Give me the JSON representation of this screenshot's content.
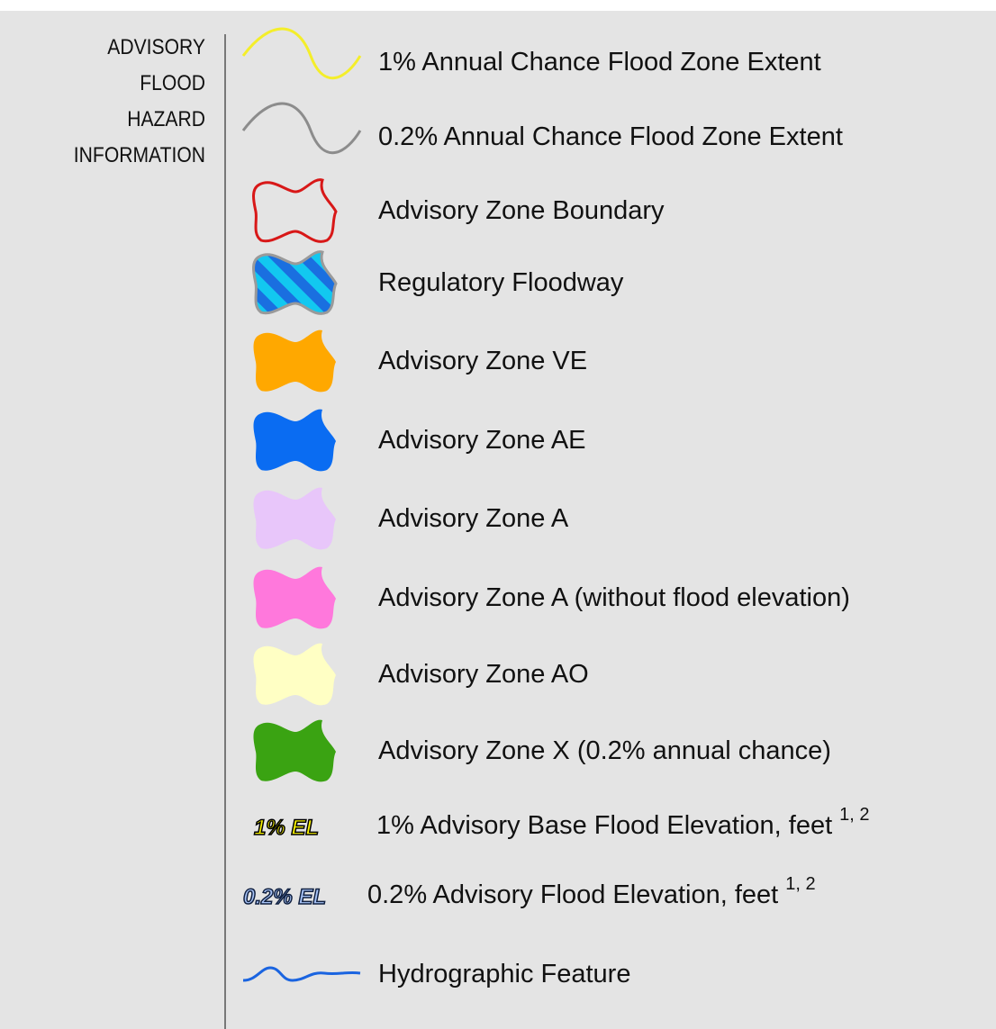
{
  "legend": {
    "title_lines": [
      "ADVISORY",
      "FLOOD",
      "HAZARD",
      "INFORMATION"
    ],
    "items": [
      {
        "label": "1% Annual Chance Flood Zone Extent"
      },
      {
        "label": "0.2% Annual Chance Flood Zone Extent"
      },
      {
        "label": "Advisory Zone Boundary"
      },
      {
        "label": "Regulatory Floodway"
      },
      {
        "label": "Advisory Zone VE"
      },
      {
        "label": "Advisory Zone AE"
      },
      {
        "label": "Advisory Zone A"
      },
      {
        "label": "Advisory Zone A (without flood elevation)"
      },
      {
        "label": "Advisory Zone AO"
      },
      {
        "label": "Advisory Zone X (0.2% annual chance)"
      },
      {
        "symbol_text": "1% EL",
        "label": "1% Advisory Base Flood Elevation, feet",
        "superscript": "1, 2"
      },
      {
        "symbol_text": "0.2% EL",
        "label": "0.2% Advisory Flood Elevation, feet",
        "superscript": "1, 2"
      },
      {
        "label": "Hydrographic Feature"
      }
    ]
  }
}
